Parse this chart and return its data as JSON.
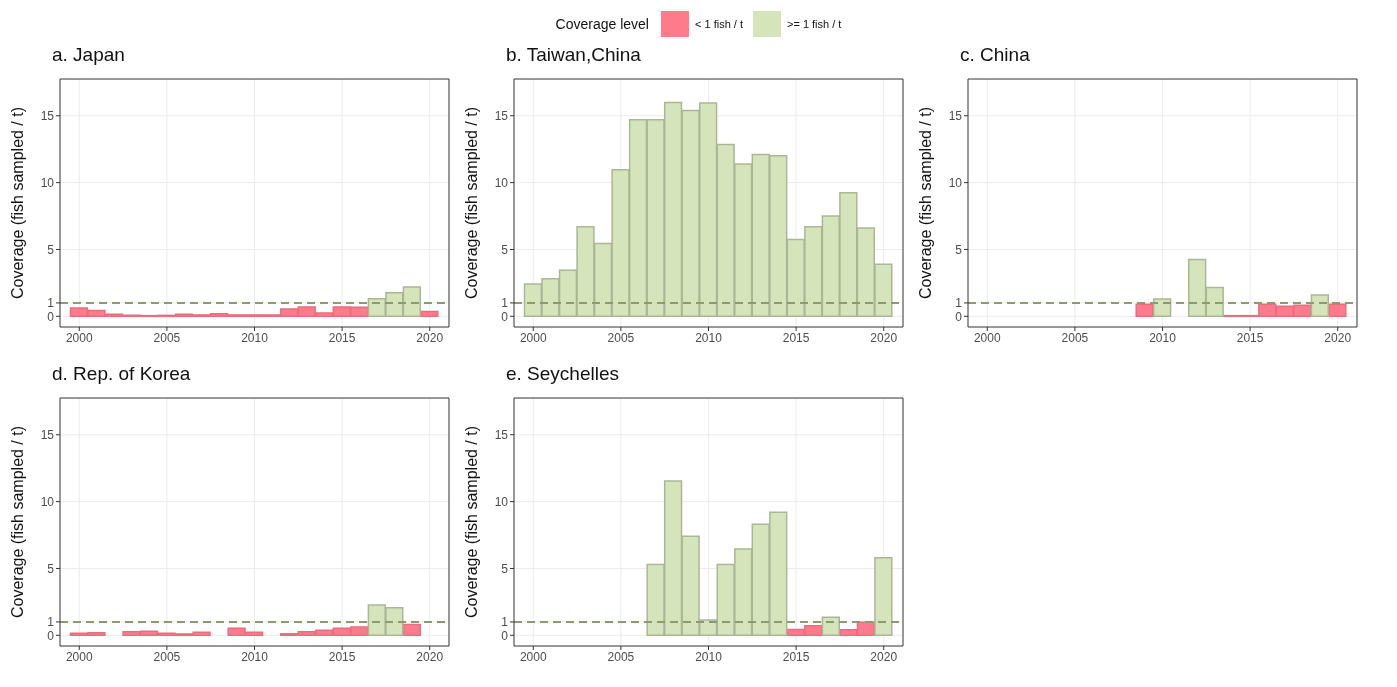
{
  "chart_data": [
    {
      "type": "bar",
      "title": "a. Japan",
      "ylabel": "Coverage (fish sampled / t)",
      "legend_title": "Coverage level",
      "legend": "top",
      "x": [
        2000,
        2001,
        2002,
        2003,
        2004,
        2005,
        2006,
        2007,
        2008,
        2009,
        2010,
        2011,
        2012,
        2013,
        2014,
        2015,
        2016,
        2017,
        2018,
        2019,
        2020
      ],
      "series": [
        {
          "name": "< 1 fish / t",
          "color": "#ff7b8c",
          "values": [
            0.62,
            0.43,
            0.15,
            0.07,
            0.05,
            0.07,
            0.15,
            0.1,
            0.2,
            0.1,
            0.1,
            0.1,
            0.55,
            0.7,
            0.25,
            0.7,
            0.67,
            null,
            null,
            null,
            0.36
          ]
        },
        {
          "name": ">= 1 fish / t",
          "color": "#d6e4bc",
          "values": [
            null,
            null,
            null,
            null,
            null,
            null,
            null,
            null,
            null,
            null,
            null,
            null,
            null,
            null,
            null,
            null,
            null,
            1.32,
            1.77,
            2.2,
            null
          ]
        }
      ],
      "xlim": [
        1998.9,
        2021.1
      ],
      "xticks": [
        2000,
        2005,
        2010,
        2015,
        2020
      ],
      "ylim": [
        -0.8,
        17.75
      ],
      "yticks": [
        0,
        1,
        5,
        10,
        15
      ],
      "grid": true,
      "ref_lines": [
        {
          "axis": "y",
          "value": 1,
          "color": "#8c9a72",
          "line_style": "dashed"
        }
      ]
    },
    {
      "type": "bar",
      "title": "b. Taiwan,China",
      "ylabel": "Coverage (fish sampled / t)",
      "x": [
        2000,
        2001,
        2002,
        2003,
        2004,
        2005,
        2006,
        2007,
        2008,
        2009,
        2010,
        2011,
        2012,
        2013,
        2014,
        2015,
        2016,
        2017,
        2018,
        2019,
        2020
      ],
      "series": [
        {
          "color": "#d6e4bc",
          "values": [
            2.42,
            2.8,
            3.45,
            6.7,
            5.45,
            10.97,
            14.7,
            14.7,
            16.0,
            15.4,
            15.95,
            12.85,
            11.4,
            12.1,
            12.0,
            5.75,
            6.7,
            7.5,
            9.25,
            6.6,
            3.9
          ]
        }
      ],
      "xlim": [
        1998.9,
        2021.1
      ],
      "xticks": [
        2000,
        2005,
        2010,
        2015,
        2020
      ],
      "ylim": [
        -0.8,
        17.75
      ],
      "yticks": [
        0,
        1,
        5,
        10,
        15
      ],
      "grid": true,
      "ref_lines": [
        {
          "axis": "y",
          "value": 1,
          "color": "#8c9a72",
          "line_style": "dashed"
        }
      ]
    },
    {
      "type": "bar",
      "title": "c. China",
      "ylabel": "Coverage (fish sampled / t)",
      "x": [
        2009,
        2010,
        2012,
        2013,
        2014,
        2015,
        2016,
        2017,
        2018,
        2019,
        2020
      ],
      "series": [
        {
          "color": "#ff7b8c",
          "values": [
            0.9,
            null,
            null,
            null,
            0.05,
            0.05,
            0.9,
            0.75,
            0.82,
            null,
            0.9
          ]
        },
        {
          "color": "#d6e4bc",
          "values": [
            null,
            1.3,
            4.25,
            2.15,
            null,
            null,
            null,
            null,
            null,
            1.6,
            null
          ]
        }
      ],
      "xlim": [
        1998.9,
        2021.1
      ],
      "xticks": [
        2000,
        2005,
        2010,
        2015,
        2020
      ],
      "ylim": [
        -0.8,
        17.75
      ],
      "yticks": [
        0,
        1,
        5,
        10,
        15
      ],
      "grid": true,
      "ref_lines": [
        {
          "axis": "y",
          "value": 1,
          "color": "#8c9a72",
          "line_style": "dashed"
        }
      ]
    },
    {
      "type": "bar",
      "title": "d. Rep. of Korea",
      "ylabel": "Coverage (fish sampled / t)",
      "x": [
        2000,
        2001,
        2003,
        2004,
        2005,
        2006,
        2007,
        2009,
        2010,
        2012,
        2013,
        2014,
        2015,
        2016,
        2017,
        2018,
        2019
      ],
      "series": [
        {
          "color": "#ff7b8c",
          "values": [
            0.15,
            0.2,
            0.27,
            0.3,
            0.15,
            0.1,
            0.22,
            0.53,
            0.22,
            0.12,
            0.27,
            0.38,
            0.53,
            0.62,
            null,
            null,
            0.8
          ]
        },
        {
          "color": "#d6e4bc",
          "values": [
            null,
            null,
            null,
            null,
            null,
            null,
            null,
            null,
            null,
            null,
            null,
            null,
            null,
            null,
            2.26,
            2.07,
            null
          ]
        }
      ],
      "xlim": [
        1998.9,
        2021.1
      ],
      "xticks": [
        2000,
        2005,
        2010,
        2015,
        2020
      ],
      "ylim": [
        -0.8,
        17.75
      ],
      "yticks": [
        0,
        1,
        5,
        10,
        15
      ],
      "grid": true,
      "ref_lines": [
        {
          "axis": "y",
          "value": 1,
          "color": "#8c9a72",
          "line_style": "dashed"
        }
      ]
    },
    {
      "type": "bar",
      "title": "e. Seychelles",
      "ylabel": "Coverage (fish sampled / t)",
      "x": [
        2007,
        2008,
        2009,
        2010,
        2011,
        2012,
        2013,
        2014,
        2015,
        2016,
        2017,
        2018,
        2019,
        2020
      ],
      "series": [
        {
          "color": "#ff7b8c",
          "values": [
            null,
            null,
            null,
            null,
            null,
            null,
            null,
            null,
            0.43,
            0.72,
            null,
            0.41,
            0.98,
            null
          ]
        },
        {
          "color": "#d6e4bc",
          "values": [
            5.3,
            11.55,
            7.4,
            1.15,
            5.3,
            6.45,
            8.3,
            9.2,
            null,
            null,
            1.35,
            null,
            null,
            5.8
          ]
        }
      ],
      "xlim": [
        1998.9,
        2021.1
      ],
      "xticks": [
        2000,
        2005,
        2010,
        2015,
        2020
      ],
      "ylim": [
        -0.8,
        17.75
      ],
      "yticks": [
        0,
        1,
        5,
        10,
        15
      ],
      "grid": true,
      "ref_lines": [
        {
          "axis": "y",
          "value": 1,
          "color": "#8c9a72",
          "line_style": "dashed"
        }
      ]
    }
  ]
}
